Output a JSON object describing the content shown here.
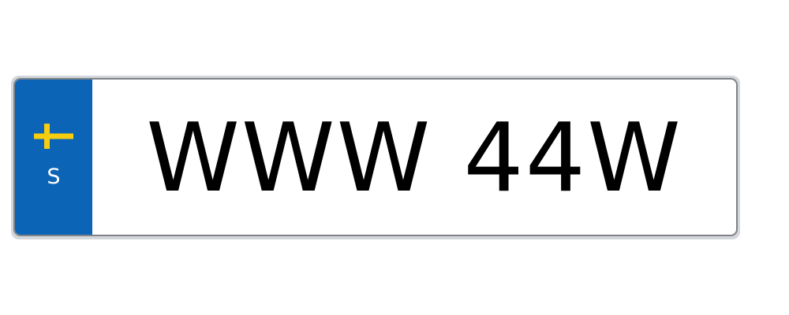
{
  "plate": {
    "country_code": "S",
    "registration": "WWW 44W",
    "flag_icon": "sweden-flag-icon"
  },
  "colors": {
    "band": "#0c64b6",
    "flag_blue": "#0c64b6",
    "flag_yellow": "#f7cd10",
    "text": "#000000"
  }
}
